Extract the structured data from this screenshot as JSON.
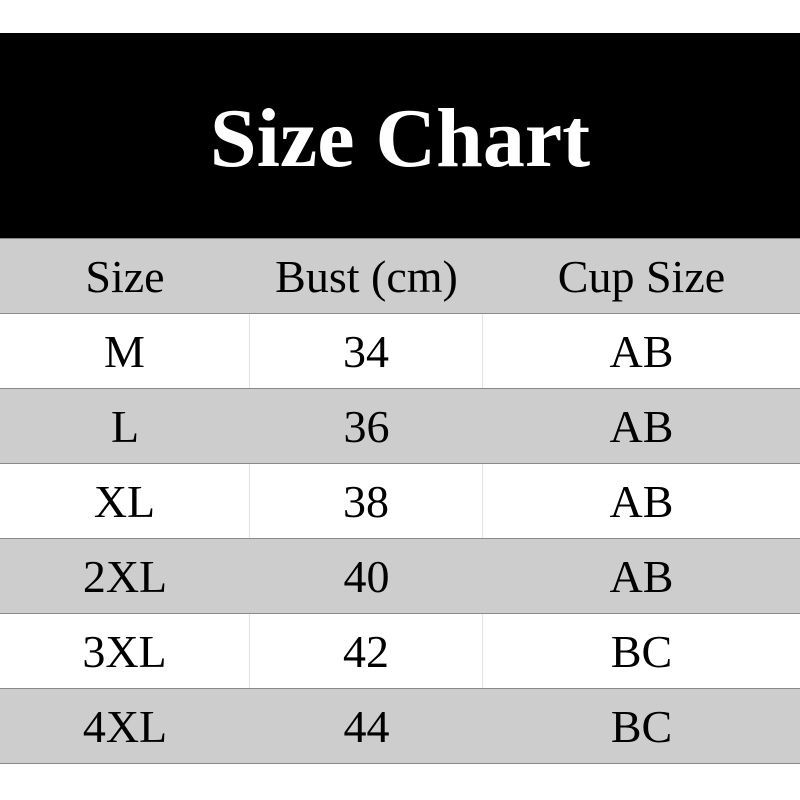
{
  "title": "Size Chart",
  "columns": [
    "Size",
    "Bust (cm)",
    "Cup Size"
  ],
  "rows": [
    [
      "M",
      "34",
      "AB"
    ],
    [
      "L",
      "36",
      "AB"
    ],
    [
      "XL",
      "38",
      "AB"
    ],
    [
      "2XL",
      "40",
      "AB"
    ],
    [
      "3XL",
      "42",
      "BC"
    ],
    [
      "4XL",
      "44",
      "BC"
    ]
  ],
  "colors": {
    "banner": "#000000",
    "stripe": "#cdcdcd"
  }
}
